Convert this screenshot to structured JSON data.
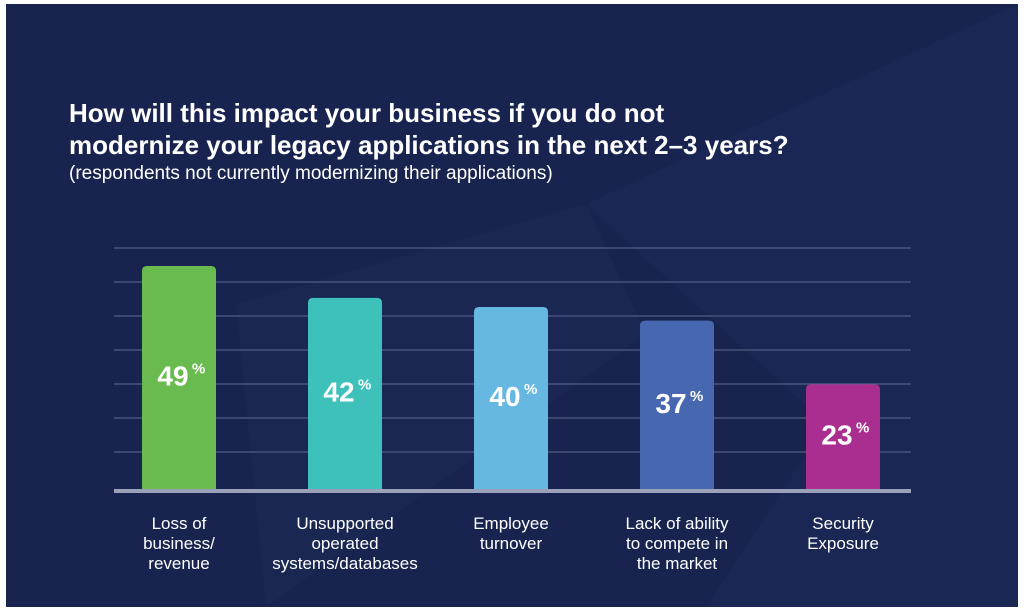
{
  "header": {
    "title_line1": "How will this impact your business if you do not",
    "title_line2": "modernize your legacy applications in the next 2–3 years?",
    "subtitle": "(respondents not currently modernizing their applications)"
  },
  "colors": {
    "background": "#18244f",
    "grid": "#5e6a8f",
    "baseline": "#9aa1b8",
    "text": "#ffffff"
  },
  "chart_data": {
    "type": "bar",
    "title": "How will this impact your business if you do not modernize your legacy applications in the next 2–3 years?",
    "subtitle": "(respondents not currently modernizing their applications)",
    "categories": [
      "Loss of business/ revenue",
      "Unsupported operated systems/databases",
      "Employee turnover",
      "Lack of ability to compete in the market",
      "Security Exposure"
    ],
    "category_lines": [
      [
        "Loss of",
        "business/",
        "revenue"
      ],
      [
        "Unsupported",
        "operated",
        "systems/databases"
      ],
      [
        "Employee",
        "turnover"
      ],
      [
        "Lack of ability",
        "to compete in",
        "the market"
      ],
      [
        "Security",
        "Exposure"
      ]
    ],
    "values": [
      49,
      42,
      40,
      37,
      23
    ],
    "value_suffix": "%",
    "bar_colors": [
      "#6abb4f",
      "#3ec1bb",
      "#66b8e2",
      "#4768b1",
      "#a92e8f"
    ],
    "xlabel": "",
    "ylabel": "",
    "grid": true,
    "legend": "none"
  }
}
